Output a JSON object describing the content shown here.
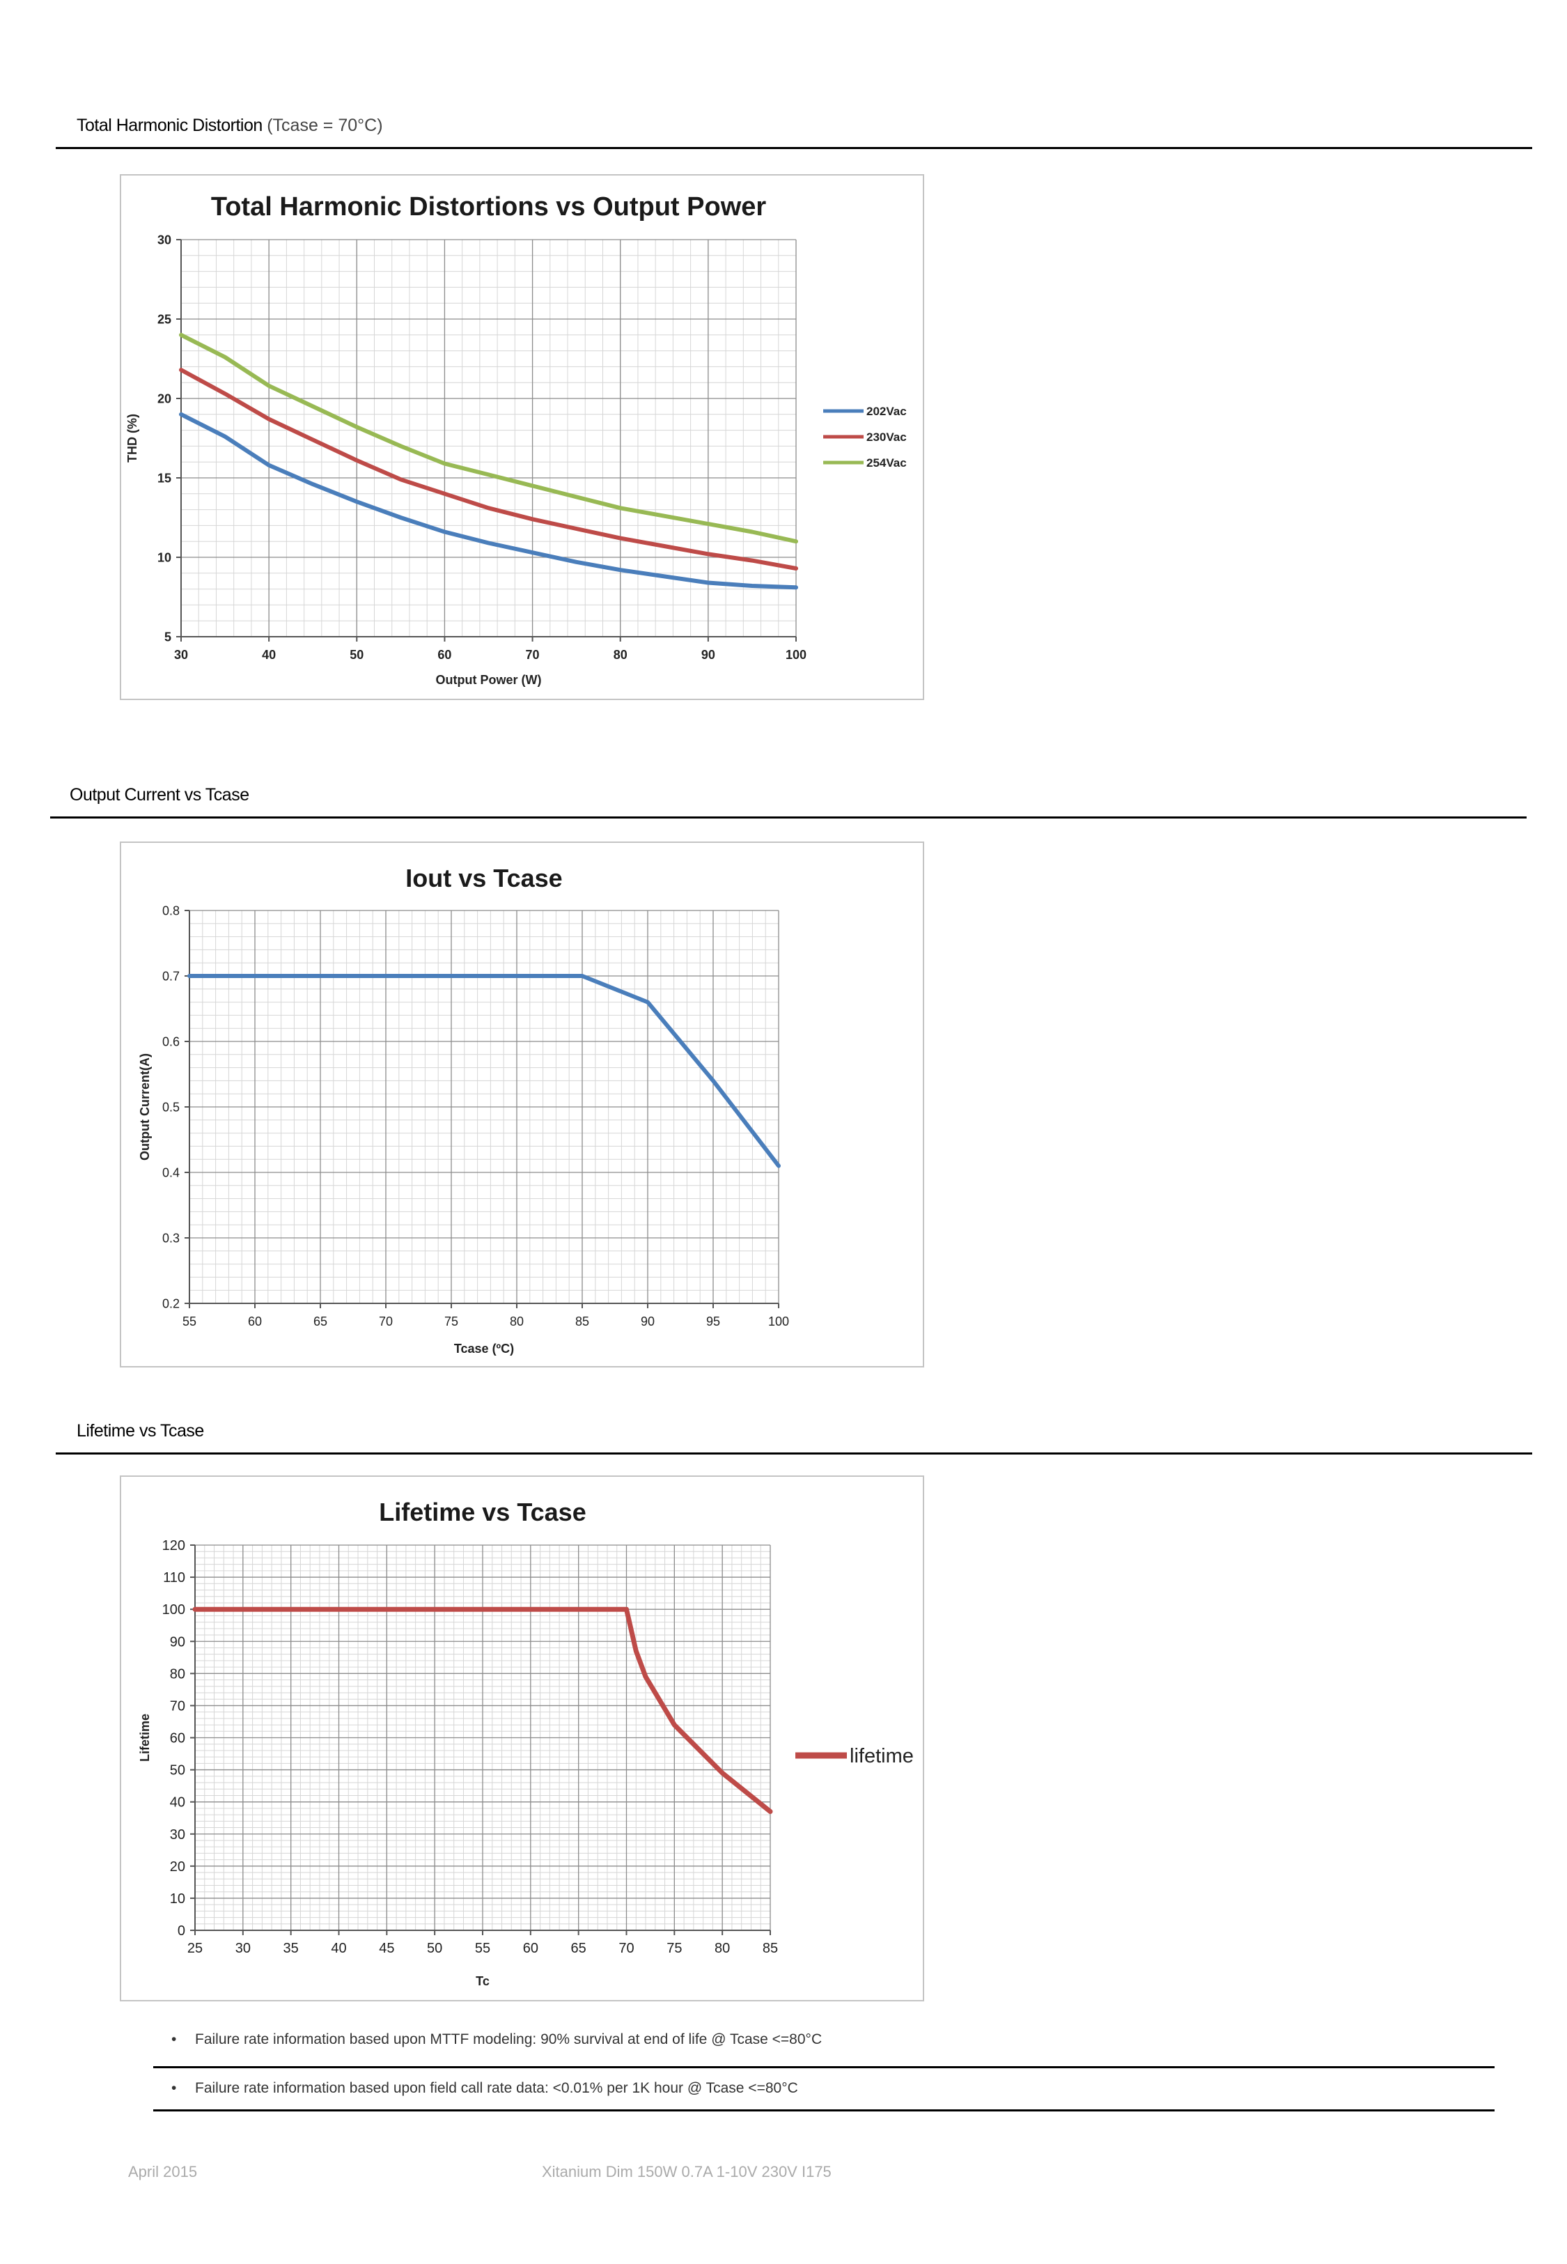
{
  "sections": {
    "thd": {
      "title": "Total Harmonic Distortion",
      "subtitle": "(Tcase = 70°C)"
    },
    "iout": {
      "title": "Output Current vs Tcase"
    },
    "life": {
      "title": "Lifetime vs Tcase"
    }
  },
  "chart_data": [
    {
      "type": "line",
      "title": "Total Harmonic Distortions vs Output Power",
      "xlabel": "Output Power (W)",
      "ylabel": "THD (%)",
      "xlim": [
        30,
        100
      ],
      "ylim": [
        5,
        30
      ],
      "xticks": [
        30,
        40,
        50,
        60,
        70,
        80,
        90,
        100
      ],
      "yticks": [
        5,
        10,
        15,
        20,
        25,
        30
      ],
      "grid": true,
      "legend": "right",
      "series": [
        {
          "name": "202Vac",
          "color": "#4a7ebb",
          "x": [
            30,
            35,
            40,
            45,
            50,
            55,
            60,
            65,
            70,
            75,
            80,
            85,
            90,
            95,
            100
          ],
          "y": [
            19.0,
            17.6,
            15.8,
            14.6,
            13.5,
            12.5,
            11.6,
            10.9,
            10.3,
            9.7,
            9.2,
            8.8,
            8.4,
            8.2,
            8.1
          ]
        },
        {
          "name": "230Vac",
          "color": "#be4b48",
          "x": [
            30,
            35,
            40,
            45,
            50,
            55,
            60,
            65,
            70,
            75,
            80,
            85,
            90,
            95,
            100
          ],
          "y": [
            21.8,
            20.3,
            18.7,
            17.4,
            16.1,
            14.9,
            14.0,
            13.1,
            12.4,
            11.8,
            11.2,
            10.7,
            10.2,
            9.8,
            9.3
          ]
        },
        {
          "name": "254Vac",
          "color": "#98b954",
          "x": [
            30,
            35,
            40,
            45,
            50,
            55,
            60,
            65,
            70,
            75,
            80,
            85,
            90,
            95,
            100
          ],
          "y": [
            24.0,
            22.6,
            20.8,
            19.5,
            18.2,
            17.0,
            15.9,
            15.2,
            14.5,
            13.8,
            13.1,
            12.6,
            12.1,
            11.6,
            11.0
          ]
        }
      ]
    },
    {
      "type": "line",
      "title": "Iout vs Tcase",
      "xlabel": "Tcase (ºC)",
      "ylabel": "Output Current(A)",
      "xlim": [
        55,
        100
      ],
      "ylim": [
        0.2,
        0.8
      ],
      "xticks": [
        55,
        60,
        65,
        70,
        75,
        80,
        85,
        90,
        95,
        100
      ],
      "yticks": [
        0.2,
        0.3,
        0.4,
        0.5,
        0.6,
        0.7,
        0.8
      ],
      "grid": true,
      "series": [
        {
          "color": "#4a7ebb",
          "x": [
            55,
            85,
            90,
            95,
            100
          ],
          "y": [
            0.7,
            0.7,
            0.66,
            0.54,
            0.41
          ]
        }
      ]
    },
    {
      "type": "line",
      "title": "Lifetime vs Tcase",
      "xlabel": "Tc",
      "ylabel": "Lifetime",
      "xlim": [
        25,
        85
      ],
      "ylim": [
        0,
        120
      ],
      "xticks": [
        25,
        30,
        35,
        40,
        45,
        50,
        55,
        60,
        65,
        70,
        75,
        80,
        85
      ],
      "yticks": [
        0,
        10,
        20,
        30,
        40,
        50,
        60,
        70,
        80,
        90,
        100,
        110,
        120
      ],
      "grid": true,
      "legend": "right",
      "series": [
        {
          "name": "lifetime",
          "color": "#be4b48",
          "x": [
            25,
            70,
            71,
            72,
            75,
            80,
            85
          ],
          "y": [
            100,
            100,
            87,
            79,
            64,
            49,
            37
          ]
        }
      ]
    }
  ],
  "bullets": [
    "Failure rate information based upon MTTF modeling: 90% survival at end of life @ Tcase <=80°C",
    "Failure rate information based upon field call rate data: <0.01% per 1K hour @ Tcase <=80°C"
  ],
  "bullet_glyph": "•",
  "footer": {
    "date": "April 2015",
    "product": "Xitanium Dim 150W 0.7A 1-10V 230V I175"
  }
}
